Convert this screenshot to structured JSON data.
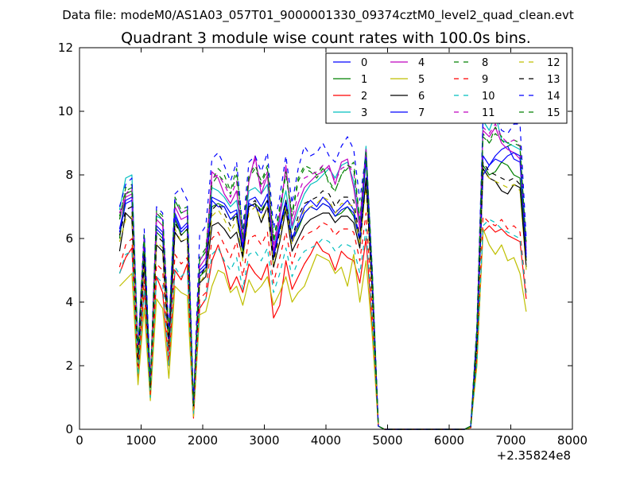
{
  "suptitle": "Data file: modeM0/AS1A03_057T01_9000001330_09374cztM0_level2_quad_clean.evt",
  "chart_data": {
    "type": "line",
    "title": "Quadrant 3 module wise count rates with 100.0s bins.",
    "xlabel": "",
    "ylabel": "",
    "x_offset_label": "+2.35824e8",
    "xlim": [
      0,
      8000
    ],
    "ylim": [
      0,
      12
    ],
    "xticks": [
      "0",
      "1000",
      "2000",
      "3000",
      "4000",
      "5000",
      "6000",
      "7000",
      "8000"
    ],
    "yticks": [
      "0",
      "2",
      "4",
      "6",
      "8",
      "10",
      "12"
    ],
    "grid": false,
    "legend": {
      "placement": "top-right",
      "columns": 4
    },
    "x": [
      650,
      750,
      850,
      950,
      1050,
      1150,
      1250,
      1350,
      1450,
      1550,
      1650,
      1750,
      1850,
      1950,
      2050,
      2150,
      2250,
      2350,
      2450,
      2550,
      2650,
      2750,
      2850,
      2950,
      3050,
      3150,
      3250,
      3350,
      3450,
      3550,
      3650,
      3750,
      3850,
      3950,
      4050,
      4150,
      4250,
      4350,
      4450,
      4550,
      4650,
      4750,
      4850,
      4950,
      5050,
      5150,
      5250,
      5350,
      5450,
      5550,
      5650,
      5750,
      5850,
      5950,
      6050,
      6150,
      6250,
      6350,
      6450,
      6550,
      6650,
      6750,
      6850,
      6950,
      7050,
      7150,
      7250
    ],
    "series": [
      {
        "name": "0",
        "color": "#0000ff",
        "dash": false,
        "values": [
          6.3,
          7.2,
          7.3,
          2.2,
          5.8,
          1.3,
          6.4,
          6.2,
          2.8,
          6.8,
          6.3,
          6.5,
          0.7,
          5.0,
          5.2,
          7.3,
          7.2,
          7.1,
          6.8,
          6.9,
          5.8,
          7.2,
          7.3,
          7.0,
          7.4,
          5.5,
          6.4,
          7.2,
          6.0,
          6.5,
          7.0,
          7.2,
          7.0,
          7.3,
          7.1,
          6.8,
          7.0,
          7.2,
          6.9,
          6.0,
          8.7,
          4.8,
          0.1,
          0.0,
          0.0,
          0.0,
          0.0,
          0.0,
          0.0,
          0.0,
          0.0,
          0.0,
          0.0,
          0.0,
          0.0,
          0.0,
          0.0,
          0.1,
          3.0,
          8.6,
          8.3,
          8.6,
          8.8,
          8.9,
          8.5,
          8.4,
          5.5
        ]
      },
      {
        "name": "1",
        "color": "#008000",
        "dash": false,
        "values": [
          6.0,
          7.4,
          7.5,
          2.5,
          5.5,
          1.2,
          6.2,
          6.0,
          2.7,
          6.6,
          6.1,
          6.3,
          0.6,
          4.8,
          5.0,
          7.0,
          7.1,
          7.0,
          6.6,
          6.7,
          5.6,
          7.0,
          7.1,
          6.9,
          7.2,
          5.4,
          6.3,
          7.0,
          5.9,
          6.3,
          6.8,
          7.0,
          6.9,
          7.1,
          7.0,
          6.7,
          6.8,
          7.0,
          6.7,
          5.9,
          8.5,
          4.7,
          0.1,
          0.0,
          0.0,
          0.0,
          0.0,
          0.0,
          0.0,
          0.0,
          0.0,
          0.0,
          0.0,
          0.0,
          0.0,
          0.0,
          0.0,
          0.1,
          2.8,
          8.3,
          8.0,
          8.1,
          8.4,
          8.3,
          8.0,
          7.9,
          5.3
        ]
      },
      {
        "name": "2",
        "color": "#ff0000",
        "dash": false,
        "values": [
          4.9,
          5.4,
          5.7,
          1.6,
          4.4,
          1.0,
          4.8,
          4.3,
          2.0,
          5.0,
          4.7,
          5.2,
          0.35,
          3.8,
          4.1,
          5.3,
          5.8,
          5.2,
          4.4,
          4.8,
          4.3,
          5.2,
          4.9,
          4.7,
          5.2,
          3.5,
          3.9,
          5.3,
          4.4,
          4.8,
          5.2,
          5.5,
          5.9,
          5.6,
          5.5,
          5.0,
          5.6,
          5.4,
          5.3,
          4.6,
          6.0,
          3.3,
          0.1,
          0.0,
          0.0,
          0.0,
          0.0,
          0.0,
          0.0,
          0.0,
          0.0,
          0.0,
          0.0,
          0.0,
          0.0,
          0.0,
          0.0,
          0.05,
          2.2,
          6.2,
          6.4,
          6.2,
          6.3,
          6.1,
          6.0,
          5.9,
          4.1
        ]
      },
      {
        "name": "3",
        "color": "#00bfbf",
        "dash": false,
        "values": [
          6.9,
          7.9,
          8.0,
          2.6,
          6.1,
          1.4,
          6.7,
          6.6,
          3.0,
          7.2,
          6.8,
          6.9,
          0.8,
          5.3,
          5.6,
          7.6,
          7.5,
          7.3,
          7.0,
          7.2,
          6.0,
          7.5,
          7.6,
          7.4,
          7.7,
          5.8,
          6.7,
          7.5,
          6.3,
          6.9,
          7.4,
          7.7,
          7.8,
          8.0,
          8.2,
          7.9,
          8.3,
          8.4,
          7.8,
          6.5,
          8.9,
          5.0,
          0.1,
          0.0,
          0.0,
          0.0,
          0.0,
          0.0,
          0.0,
          0.0,
          0.0,
          0.0,
          0.0,
          0.0,
          0.0,
          0.0,
          0.0,
          0.1,
          3.2,
          9.7,
          9.4,
          9.9,
          9.1,
          9.0,
          8.9,
          8.8,
          5.7
        ]
      },
      {
        "name": "4",
        "color": "#bf00bf",
        "dash": false,
        "values": [
          6.6,
          7.3,
          7.4,
          2.3,
          5.9,
          1.3,
          6.6,
          6.4,
          2.9,
          7.0,
          6.6,
          6.7,
          0.7,
          5.1,
          5.4,
          8.1,
          7.9,
          7.4,
          7.1,
          7.5,
          5.9,
          7.8,
          8.6,
          7.4,
          8.0,
          5.6,
          6.6,
          8.3,
          6.4,
          7.1,
          7.6,
          7.8,
          8.0,
          8.1,
          8.3,
          7.7,
          8.4,
          8.5,
          7.6,
          6.3,
          8.8,
          4.9,
          0.1,
          0.0,
          0.0,
          0.0,
          0.0,
          0.0,
          0.0,
          0.0,
          0.0,
          0.0,
          0.0,
          0.0,
          0.0,
          0.0,
          0.0,
          0.1,
          3.1,
          9.4,
          9.2,
          9.5,
          9.0,
          8.8,
          8.7,
          8.5,
          5.6
        ]
      },
      {
        "name": "5",
        "color": "#bfbf00",
        "dash": false,
        "values": [
          4.5,
          4.7,
          4.9,
          1.4,
          3.8,
          0.9,
          4.1,
          3.8,
          1.6,
          4.5,
          4.3,
          4.2,
          0.4,
          3.6,
          3.7,
          4.5,
          5.0,
          4.9,
          4.3,
          4.5,
          3.9,
          4.7,
          4.3,
          4.5,
          4.8,
          3.9,
          4.3,
          4.8,
          4.0,
          4.3,
          4.5,
          5.0,
          5.5,
          5.4,
          5.3,
          4.9,
          5.1,
          4.5,
          5.5,
          4.0,
          5.3,
          3.0,
          0.1,
          0.0,
          0.0,
          0.0,
          0.0,
          0.0,
          0.0,
          0.0,
          0.0,
          0.0,
          0.0,
          0.0,
          0.0,
          0.0,
          0.0,
          0.05,
          2.0,
          6.3,
          5.8,
          5.5,
          5.8,
          5.3,
          5.4,
          4.9,
          3.7
        ]
      },
      {
        "name": "6",
        "color": "#000000",
        "dash": false,
        "values": [
          5.6,
          6.8,
          6.6,
          2.0,
          5.2,
          1.2,
          5.8,
          5.6,
          2.5,
          6.2,
          5.9,
          6.0,
          0.6,
          4.6,
          4.8,
          6.4,
          6.5,
          6.3,
          6.0,
          6.2,
          5.4,
          7.0,
          7.1,
          6.5,
          7.0,
          5.1,
          5.9,
          6.9,
          5.6,
          6.0,
          6.4,
          6.6,
          6.7,
          6.8,
          6.8,
          6.5,
          6.7,
          6.7,
          6.5,
          5.7,
          7.9,
          4.4,
          0.1,
          0.0,
          0.0,
          0.0,
          0.0,
          0.0,
          0.0,
          0.0,
          0.0,
          0.0,
          0.0,
          0.0,
          0.0,
          0.0,
          0.0,
          0.05,
          2.6,
          8.2,
          7.9,
          7.8,
          7.5,
          7.4,
          7.7,
          7.6,
          5.1
        ]
      },
      {
        "name": "7",
        "color": "#0000ff",
        "dash": false,
        "values": [
          6.2,
          7.1,
          7.2,
          2.1,
          5.7,
          1.3,
          6.3,
          6.1,
          2.7,
          6.7,
          6.2,
          6.4,
          0.7,
          4.9,
          5.1,
          7.2,
          7.0,
          7.0,
          6.6,
          6.8,
          5.7,
          7.1,
          7.0,
          6.8,
          7.2,
          5.4,
          6.3,
          7.1,
          5.9,
          6.4,
          6.8,
          7.0,
          6.9,
          7.1,
          7.0,
          6.7,
          6.9,
          7.0,
          6.8,
          5.9,
          8.6,
          4.7,
          0.1,
          0.0,
          0.0,
          0.0,
          0.0,
          0.0,
          0.0,
          0.0,
          0.0,
          0.0,
          0.0,
          0.0,
          0.0,
          0.0,
          0.0,
          0.1,
          2.9,
          8.0,
          8.3,
          8.5,
          8.4,
          8.6,
          8.7,
          8.6,
          5.4
        ]
      },
      {
        "name": "8",
        "color": "#008000",
        "dash": true,
        "values": [
          6.6,
          7.6,
          7.7,
          2.4,
          6.0,
          1.4,
          6.9,
          6.7,
          3.0,
          7.3,
          6.9,
          7.0,
          0.8,
          5.4,
          5.7,
          7.8,
          8.2,
          8.0,
          7.5,
          8.2,
          6.1,
          8.0,
          8.3,
          7.8,
          8.3,
          6.0,
          7.0,
          8.1,
          6.8,
          7.9,
          8.3,
          8.2,
          8.0,
          8.3,
          7.7,
          7.5,
          8.0,
          8.2,
          8.4,
          6.6,
          8.8,
          5.1,
          0.1,
          0.0,
          0.0,
          0.0,
          0.0,
          0.0,
          0.0,
          0.0,
          0.0,
          0.0,
          0.0,
          0.0,
          0.0,
          0.0,
          0.0,
          0.1,
          3.2,
          9.3,
          9.0,
          9.5,
          9.2,
          9.0,
          9.1,
          9.0,
          5.9
        ]
      },
      {
        "name": "9",
        "color": "#ff0000",
        "dash": true,
        "values": [
          5.1,
          5.8,
          6.0,
          1.8,
          4.7,
          1.1,
          5.2,
          5.0,
          2.2,
          5.5,
          5.2,
          5.4,
          0.5,
          4.1,
          4.3,
          6.0,
          6.2,
          5.8,
          5.4,
          5.9,
          4.8,
          6.0,
          6.1,
          5.8,
          6.2,
          4.6,
          5.4,
          6.2,
          5.2,
          5.8,
          6.1,
          6.2,
          6.3,
          6.5,
          6.4,
          6.1,
          6.3,
          6.3,
          6.2,
          5.3,
          6.8,
          3.8,
          0.1,
          0.0,
          0.0,
          0.0,
          0.0,
          0.0,
          0.0,
          0.0,
          0.0,
          0.0,
          0.0,
          0.0,
          0.0,
          0.0,
          0.0,
          0.05,
          2.3,
          6.7,
          6.5,
          6.4,
          6.6,
          6.3,
          6.4,
          6.2,
          4.3
        ]
      },
      {
        "name": "10",
        "color": "#00bfbf",
        "dash": true,
        "values": [
          4.9,
          5.5,
          5.6,
          1.7,
          4.4,
          1.0,
          4.8,
          4.6,
          2.0,
          5.1,
          4.8,
          5.0,
          0.5,
          3.9,
          4.1,
          5.5,
          5.7,
          5.3,
          5.0,
          5.4,
          4.4,
          5.5,
          5.6,
          5.3,
          5.7,
          4.3,
          4.9,
          5.7,
          4.8,
          5.3,
          5.6,
          5.7,
          5.8,
          6.0,
          5.9,
          5.6,
          5.8,
          5.8,
          5.7,
          4.9,
          6.3,
          3.5,
          0.1,
          0.0,
          0.0,
          0.0,
          0.0,
          0.0,
          0.0,
          0.0,
          0.0,
          0.0,
          0.0,
          0.0,
          0.0,
          0.0,
          0.0,
          0.05,
          2.1,
          6.4,
          6.6,
          6.5,
          6.3,
          6.2,
          6.1,
          6.0,
          4.2
        ]
      },
      {
        "name": "11",
        "color": "#bf00bf",
        "dash": true,
        "values": [
          6.8,
          7.4,
          7.6,
          2.4,
          6.1,
          1.4,
          6.8,
          6.6,
          3.0,
          7.2,
          6.8,
          6.9,
          0.8,
          5.3,
          5.6,
          7.9,
          8.0,
          7.7,
          7.3,
          7.8,
          6.0,
          7.9,
          8.5,
          7.6,
          8.1,
          5.8,
          6.8,
          8.2,
          6.6,
          7.4,
          7.9,
          8.0,
          8.1,
          8.3,
          8.2,
          7.8,
          8.2,
          8.3,
          8.1,
          6.5,
          8.8,
          5.0,
          0.1,
          0.0,
          0.0,
          0.0,
          0.0,
          0.0,
          0.0,
          0.0,
          0.0,
          0.0,
          0.0,
          0.0,
          0.0,
          0.0,
          0.0,
          0.1,
          3.1,
          9.5,
          9.3,
          9.6,
          9.2,
          9.0,
          9.1,
          8.9,
          5.8
        ]
      },
      {
        "name": "12",
        "color": "#bfbf00",
        "dash": true,
        "values": [
          5.9,
          6.6,
          6.7,
          2.1,
          5.3,
          1.2,
          5.9,
          5.7,
          2.6,
          6.3,
          5.9,
          6.0,
          0.6,
          4.6,
          4.9,
          6.7,
          6.9,
          6.6,
          6.2,
          6.6,
          5.3,
          6.8,
          7.0,
          6.6,
          7.0,
          5.2,
          6.0,
          7.0,
          5.8,
          6.5,
          6.9,
          7.0,
          7.1,
          7.3,
          7.2,
          6.8,
          7.1,
          7.1,
          7.0,
          5.8,
          7.6,
          4.3,
          0.1,
          0.0,
          0.0,
          0.0,
          0.0,
          0.0,
          0.0,
          0.0,
          0.0,
          0.0,
          0.0,
          0.0,
          0.0,
          0.0,
          0.0,
          0.05,
          2.6,
          8.1,
          7.9,
          7.8,
          7.7,
          7.6,
          7.7,
          7.5,
          5.0
        ]
      },
      {
        "name": "13",
        "color": "#000000",
        "dash": true,
        "values": [
          6.1,
          6.9,
          7.0,
          2.2,
          5.5,
          1.3,
          6.1,
          5.9,
          2.7,
          6.5,
          6.1,
          6.3,
          0.7,
          4.8,
          5.1,
          6.9,
          7.1,
          6.8,
          6.4,
          6.8,
          5.5,
          7.0,
          7.2,
          6.8,
          7.2,
          5.3,
          6.2,
          7.2,
          6.0,
          6.7,
          7.1,
          7.2,
          7.3,
          7.5,
          7.4,
          7.0,
          7.3,
          7.3,
          7.2,
          6.0,
          7.8,
          4.4,
          0.1,
          0.0,
          0.0,
          0.0,
          0.0,
          0.0,
          0.0,
          0.0,
          0.0,
          0.0,
          0.0,
          0.0,
          0.0,
          0.0,
          0.0,
          0.1,
          2.7,
          8.4,
          8.1,
          8.0,
          7.9,
          7.8,
          7.9,
          7.7,
          5.2
        ]
      },
      {
        "name": "14",
        "color": "#0000ff",
        "dash": true,
        "values": [
          7.0,
          7.7,
          7.9,
          2.5,
          6.3,
          1.5,
          7.0,
          6.8,
          3.1,
          7.4,
          7.6,
          7.2,
          0.8,
          6.1,
          6.4,
          8.5,
          8.7,
          8.3,
          7.8,
          8.4,
          6.3,
          8.4,
          8.6,
          8.1,
          8.7,
          6.3,
          7.3,
          8.6,
          7.1,
          8.2,
          8.9,
          8.6,
          8.7,
          9.0,
          8.6,
          8.4,
          8.9,
          9.2,
          8.8,
          7.2,
          8.7,
          5.1,
          0.1,
          0.0,
          0.0,
          0.0,
          0.0,
          0.0,
          0.0,
          0.0,
          0.0,
          0.0,
          0.0,
          0.0,
          0.0,
          0.0,
          0.0,
          0.1,
          3.3,
          9.8,
          9.7,
          10.0,
          9.4,
          9.3,
          9.6,
          9.6,
          6.0
        ]
      },
      {
        "name": "15",
        "color": "#008000",
        "dash": true,
        "values": [
          6.7,
          7.5,
          7.6,
          2.4,
          6.1,
          1.4,
          6.8,
          6.6,
          3.0,
          7.2,
          6.8,
          6.9,
          0.8,
          5.3,
          5.6,
          7.7,
          8.0,
          7.8,
          7.4,
          8.0,
          6.0,
          7.9,
          8.2,
          7.7,
          8.2,
          5.9,
          6.9,
          8.0,
          6.7,
          7.8,
          8.2,
          8.1,
          7.9,
          8.2,
          7.8,
          7.5,
          8.0,
          8.3,
          8.2,
          6.6,
          8.7,
          5.0,
          0.1,
          0.0,
          0.0,
          0.0,
          0.0,
          0.0,
          0.0,
          0.0,
          0.0,
          0.0,
          0.0,
          0.0,
          0.0,
          0.0,
          0.0,
          0.1,
          3.1,
          9.2,
          9.0,
          9.3,
          9.1,
          8.9,
          9.0,
          8.9,
          5.8
        ]
      }
    ]
  }
}
